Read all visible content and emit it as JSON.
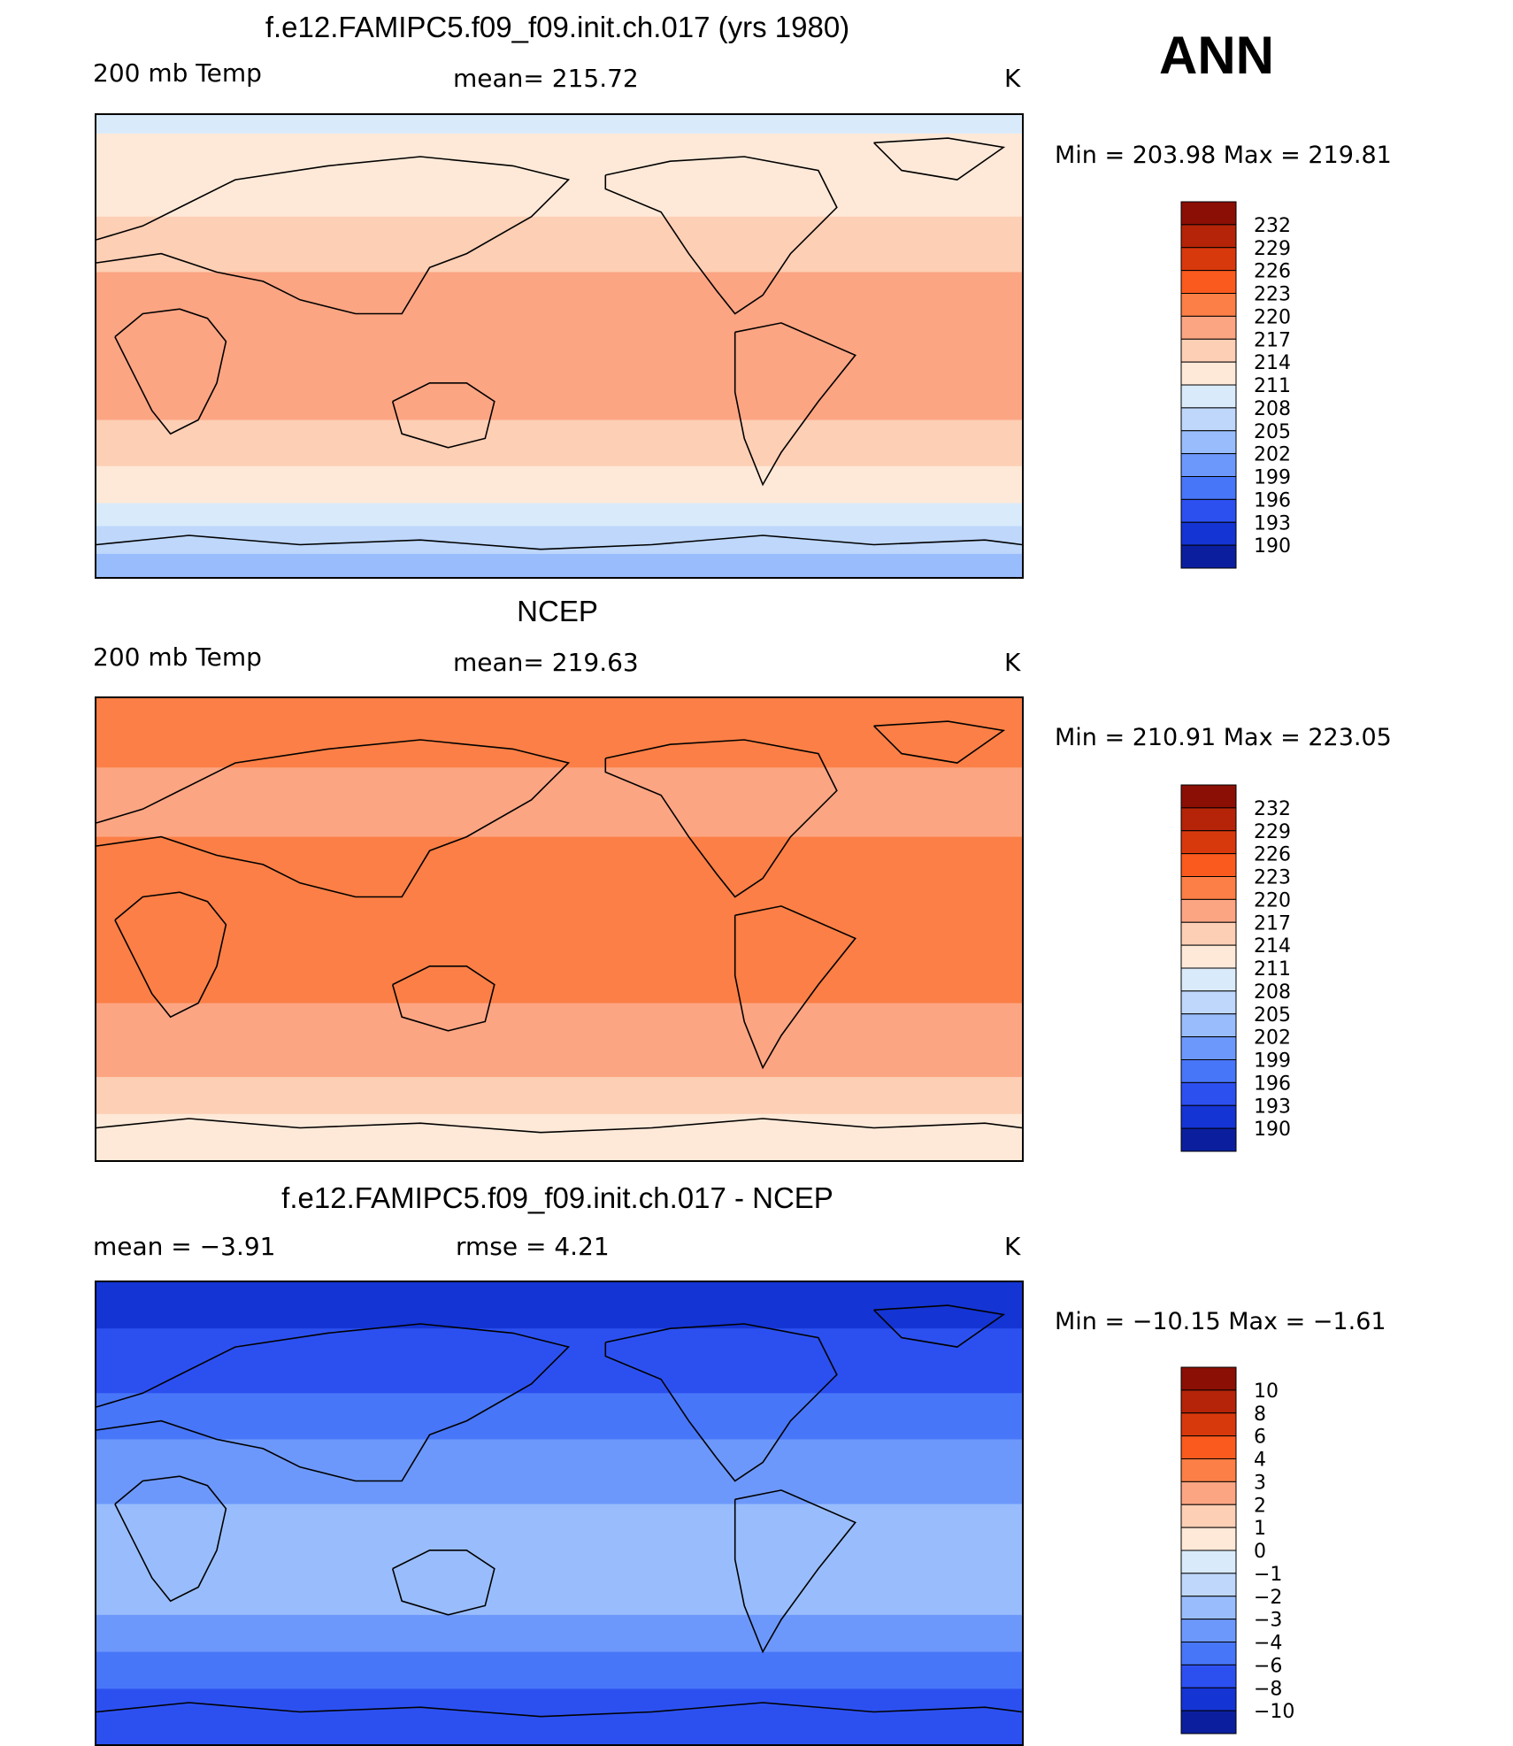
{
  "season": "ANN",
  "panels": [
    {
      "title": "f.e12.FAMIPC5.f09_f09.init.ch.017 (yrs 1980)",
      "left_label": "200 mb Temp",
      "center_label": "mean= 215.72",
      "units": "K",
      "minmax": "Min = 203.98 Max = 219.81"
    },
    {
      "title": "NCEP",
      "left_label": "200 mb Temp",
      "center_label": "mean= 219.63",
      "units": "K",
      "minmax": "Min = 210.91 Max = 223.05"
    },
    {
      "title": "f.e12.FAMIPC5.f09_f09.init.ch.017 - NCEP",
      "left_label": "mean = −3.91",
      "center_label": "rmse = 4.21",
      "units": "K",
      "minmax": "Min = −10.15 Max = −1.61"
    }
  ],
  "chart_data": [
    {
      "type": "heatmap",
      "title": "f.e12.FAMIPC5.f09_f09.init.ch.017 (yrs 1980)",
      "variable": "200 mb Temp",
      "units": "K",
      "mean": 215.72,
      "min": 203.98,
      "max": 219.81,
      "colorbar_levels": [
        232,
        229,
        226,
        223,
        220,
        217,
        214,
        211,
        208,
        205,
        202,
        199,
        196,
        193,
        190
      ],
      "colorbar_colors": [
        "#8b0f05",
        "#b52408",
        "#d8390c",
        "#fa5a1e",
        "#fb7f46",
        "#fca583",
        "#fdcfb5",
        "#fee9d8",
        "#d9ebfb",
        "#bed7fb",
        "#99bdfc",
        "#6d98fb",
        "#4876f9",
        "#2c50f0",
        "#1434d4",
        "#0b1f9e"
      ],
      "band_colors_north_to_south": [
        "#d9ebfb",
        "#fee9d8",
        "#fdcfb5",
        "#fca583",
        "#fca583",
        "#fdcfb5",
        "#fee9d8",
        "#d9ebfb",
        "#bed7fb",
        "#99bdfc"
      ]
    },
    {
      "type": "heatmap",
      "title": "NCEP",
      "variable": "200 mb Temp",
      "units": "K",
      "mean": 219.63,
      "min": 210.91,
      "max": 223.05,
      "colorbar_levels": [
        232,
        229,
        226,
        223,
        220,
        217,
        214,
        211,
        208,
        205,
        202,
        199,
        196,
        193,
        190
      ],
      "colorbar_colors": [
        "#8b0f05",
        "#b52408",
        "#d8390c",
        "#fa5a1e",
        "#fb7f46",
        "#fca583",
        "#fdcfb5",
        "#fee9d8",
        "#d9ebfb",
        "#bed7fb",
        "#99bdfc",
        "#6d98fb",
        "#4876f9",
        "#2c50f0",
        "#1434d4",
        "#0b1f9e"
      ],
      "band_colors_north_to_south": [
        "#fb7f46",
        "#fca583",
        "#fb7f46",
        "#fb7f46",
        "#fca583",
        "#fdcfb5",
        "#fee9d8"
      ]
    },
    {
      "type": "heatmap",
      "title": "f.e12.FAMIPC5.f09_f09.init.ch.017 - NCEP",
      "units": "K",
      "mean": -3.91,
      "rmse": 4.21,
      "min": -10.15,
      "max": -1.61,
      "colorbar_levels": [
        10,
        8,
        6,
        4,
        3,
        2,
        1,
        0,
        -1,
        -2,
        -3,
        -4,
        -6,
        -8,
        -10
      ],
      "colorbar_colors": [
        "#8b0f05",
        "#b52408",
        "#d8390c",
        "#fa5a1e",
        "#fb7f46",
        "#fca583",
        "#fdcfb5",
        "#fee9d8",
        "#d9ebfb",
        "#bed7fb",
        "#99bdfc",
        "#6d98fb",
        "#4876f9",
        "#2c50f0",
        "#1434d4",
        "#0b1f9e"
      ],
      "band_colors_north_to_south": [
        "#1434d4",
        "#2c50f0",
        "#4876f9",
        "#6d98fb",
        "#99bdfc",
        "#99bdfc",
        "#6d98fb",
        "#4876f9",
        "#2c50f0",
        "#2c50f0"
      ]
    }
  ]
}
